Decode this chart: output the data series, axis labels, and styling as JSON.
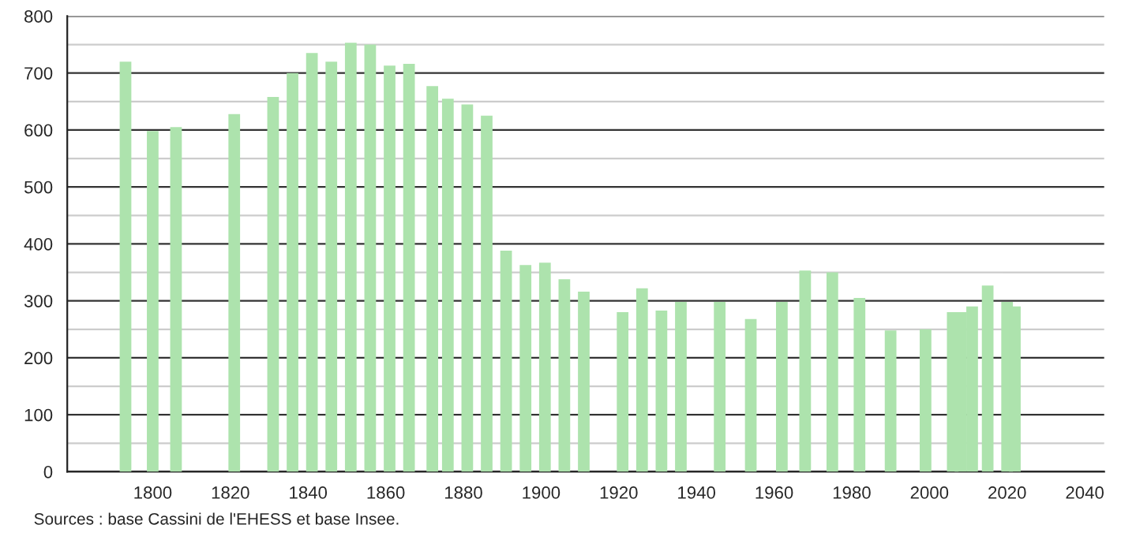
{
  "chart_data": {
    "type": "bar",
    "x": [
      1793,
      1800,
      1806,
      1821,
      1831,
      1836,
      1841,
      1846,
      1851,
      1856,
      1861,
      1866,
      1872,
      1876,
      1881,
      1886,
      1891,
      1896,
      1901,
      1906,
      1911,
      1921,
      1926,
      1931,
      1936,
      1946,
      1954,
      1962,
      1968,
      1975,
      1982,
      1990,
      1999,
      2006,
      2008,
      2011,
      2015,
      2020,
      2022
    ],
    "values": [
      720,
      598,
      605,
      628,
      658,
      700,
      735,
      720,
      753,
      750,
      713,
      716,
      677,
      655,
      645,
      625,
      388,
      363,
      367,
      338,
      316,
      280,
      322,
      283,
      298,
      298,
      268,
      298,
      353,
      350,
      305,
      248,
      250,
      280,
      280,
      290,
      327,
      298,
      290
    ],
    "color": "#ade3ad",
    "xlim": [
      1778,
      2045
    ],
    "xticks": [
      1800,
      1820,
      1840,
      1860,
      1880,
      1900,
      1920,
      1940,
      1960,
      1980,
      2000,
      2020,
      2040
    ],
    "ylim": [
      0,
      800
    ],
    "yticks": [
      0,
      100,
      200,
      300,
      400,
      500,
      600,
      700,
      800
    ],
    "grid": "y",
    "annotations": [
      "Sources : base Cassini de l'EHESS et base Insee."
    ]
  }
}
